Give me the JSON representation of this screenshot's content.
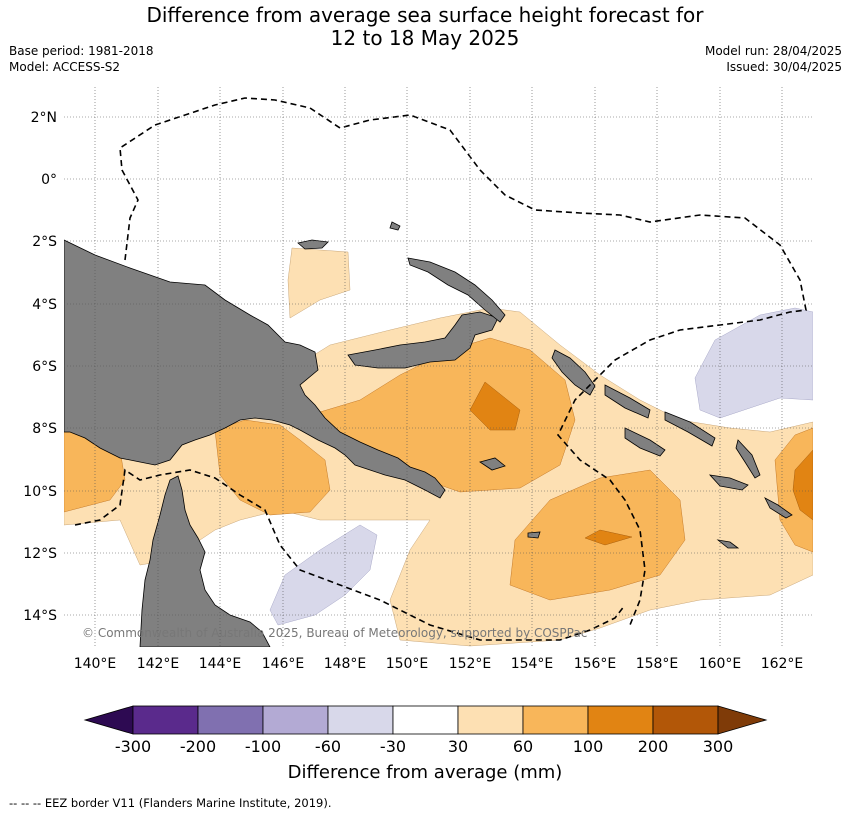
{
  "title_line1": "Difference from average sea surface height forecast for",
  "title_line2": "12 to 18 May 2025",
  "base_period": "Base period: 1981-2018",
  "model": "Model: ACCESS-S2",
  "model_run": "Model run: 28/04/2025",
  "issued": "Issued: 30/04/2025",
  "lat_labels": [
    "2°N",
    "0°",
    "2°S",
    "4°S",
    "6°S",
    "8°S",
    "10°S",
    "12°S",
    "14°S"
  ],
  "lon_labels": [
    "140°E",
    "142°E",
    "144°E",
    "146°E",
    "148°E",
    "150°E",
    "152°E",
    "154°E",
    "156°E",
    "158°E",
    "160°E",
    "162°E"
  ],
  "copyright": "© Commonwealth of Australia 2025, Bureau of Meteorology, supported by COSPPac",
  "colorbar": {
    "label": "Difference from average (mm)",
    "ticks": [
      "-300",
      "-200",
      "-100",
      "-60",
      "-30",
      "30",
      "60",
      "100",
      "200",
      "300"
    ],
    "colors": [
      "#5a2a8c",
      "#8070b0",
      "#b3aad4",
      "#d8d8ea",
      "#ffffff",
      "#fde0b3",
      "#f8b65a",
      "#e18413",
      "#b25708"
    ],
    "extend_low_color": "#2d0a52",
    "extend_high_color": "#7f3b08"
  },
  "footnote": "--  --  -- EEZ border V11 (Flanders Marine Institute, 2019).",
  "colors": {
    "land": "#808080",
    "light_orange": "#fde0b3",
    "orange": "#f8b65a",
    "dark_orange": "#e18413",
    "lavender": "#d8d8ea"
  }
}
